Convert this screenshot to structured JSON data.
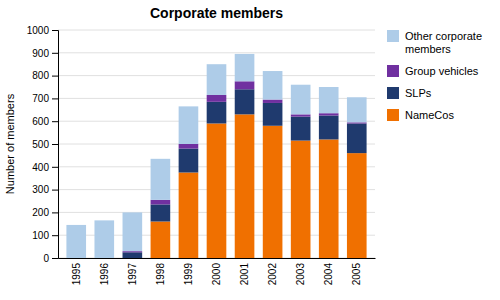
{
  "chart_data": {
    "type": "bar",
    "stacked": true,
    "title": "Corporate members",
    "ylabel": "Number of members",
    "categories": [
      "1995",
      "1996",
      "1997",
      "1998",
      "1999",
      "2000",
      "2001",
      "2002",
      "2003",
      "2004",
      "2005"
    ],
    "series": [
      {
        "name": "NameCos",
        "color": "#f07000",
        "values": [
          0,
          0,
          0,
          160,
          375,
          590,
          630,
          580,
          515,
          520,
          460
        ]
      },
      {
        "name": "SLPs",
        "color": "#1f3a6e",
        "values": [
          0,
          0,
          25,
          75,
          105,
          95,
          110,
          100,
          105,
          105,
          130
        ]
      },
      {
        "name": "Group vehicles",
        "color": "#7030a0",
        "values": [
          0,
          0,
          5,
          20,
          20,
          30,
          35,
          15,
          10,
          10,
          5
        ]
      },
      {
        "name": "Other corporate\nmembers",
        "color": "#aecce8",
        "values": [
          145,
          165,
          170,
          180,
          165,
          135,
          120,
          125,
          130,
          115,
          110
        ]
      }
    ],
    "ylim": [
      0,
      1000
    ],
    "yticks": [
      0,
      100,
      200,
      300,
      400,
      500,
      600,
      700,
      800,
      900,
      1000
    ],
    "grid": true,
    "legend": "right"
  }
}
